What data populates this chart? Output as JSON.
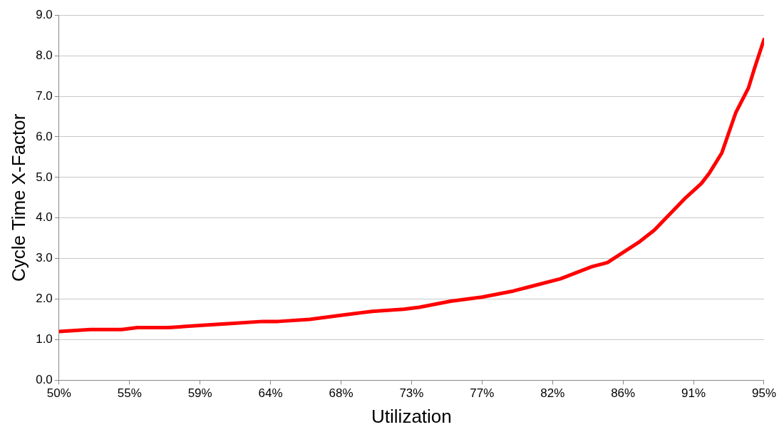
{
  "chart_data": {
    "type": "line",
    "xlabel": "Utilization",
    "ylabel": "Cycle Time X-Factor",
    "x": [
      50,
      52,
      54,
      55,
      57,
      59,
      61,
      63,
      64,
      66,
      68,
      70,
      72,
      73,
      75,
      77,
      79,
      80,
      82,
      84,
      85,
      86,
      87,
      88,
      89,
      90,
      91,
      91.5,
      92.3,
      93.2,
      94,
      94.4,
      95
    ],
    "series": [
      {
        "color": "#ff0000",
        "values": [
          1.2,
          1.25,
          1.25,
          1.3,
          1.3,
          1.35,
          1.4,
          1.45,
          1.45,
          1.5,
          1.6,
          1.7,
          1.75,
          1.8,
          1.95,
          2.05,
          2.2,
          2.3,
          2.5,
          2.8,
          2.9,
          3.15,
          3.4,
          3.7,
          4.1,
          4.5,
          4.85,
          5.1,
          5.6,
          6.6,
          7.2,
          7.7,
          8.4
        ]
      }
    ],
    "xlim": [
      50,
      95
    ],
    "xticks": [
      {
        "value": 50,
        "label": "50%"
      },
      {
        "value": 54.5,
        "label": "55%"
      },
      {
        "value": 59,
        "label": "59%"
      },
      {
        "value": 63.5,
        "label": "64%"
      },
      {
        "value": 68,
        "label": "68%"
      },
      {
        "value": 72.5,
        "label": "73%"
      },
      {
        "value": 77,
        "label": "77%"
      },
      {
        "value": 81.5,
        "label": "82%"
      },
      {
        "value": 86,
        "label": "86%"
      },
      {
        "value": 90.5,
        "label": "91%"
      },
      {
        "value": 95,
        "label": "95%"
      }
    ],
    "ylim": [
      0,
      9
    ],
    "yticks": [
      {
        "value": 0,
        "label": "0.0"
      },
      {
        "value": 1,
        "label": "1.0"
      },
      {
        "value": 2,
        "label": "2.0"
      },
      {
        "value": 3,
        "label": "3.0"
      },
      {
        "value": 4,
        "label": "4.0"
      },
      {
        "value": 5,
        "label": "5.0"
      },
      {
        "value": 6,
        "label": "6.0"
      },
      {
        "value": 7,
        "label": "7.0"
      },
      {
        "value": 8,
        "label": "8.0"
      },
      {
        "value": 9,
        "label": "9.0"
      }
    ],
    "grid": "y",
    "legend": false,
    "marker": "none",
    "line_style": "solid"
  }
}
